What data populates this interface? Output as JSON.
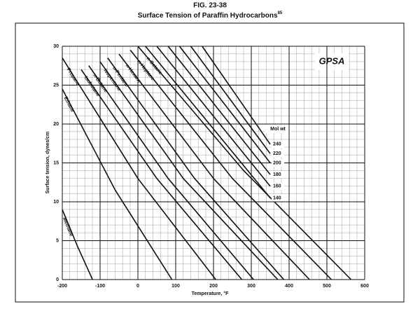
{
  "chart_data": {
    "type": "line",
    "figure_label": "FIG. 23-38",
    "title": "Surface Tension of Paraffin Hydrocarbons",
    "title_ref": "85",
    "x_label": "Temperature, °F",
    "y_label": "Surface tension, dynes/cm",
    "logo": "GPSA",
    "legend_title": "Mol wt",
    "xlim": [
      -200,
      600
    ],
    "xticks": [
      -200,
      -100,
      0,
      100,
      200,
      300,
      400,
      500,
      600
    ],
    "ylim": [
      0,
      30
    ],
    "yticks": [
      0,
      5,
      10,
      15,
      20,
      25,
      30
    ],
    "grid": true,
    "color": "#111111",
    "series": [
      {
        "name": "Methane",
        "x": [
          -200,
          -160,
          -120
        ],
        "values": [
          9,
          4.3,
          0
        ]
      },
      {
        "name": "Ethane",
        "x": [
          -200,
          -60,
          90
        ],
        "values": [
          24.5,
          11.5,
          0
        ]
      },
      {
        "name": "Propane",
        "x": [
          -200,
          0,
          206
        ],
        "values": [
          28.5,
          13,
          0
        ]
      },
      {
        "name": "Isobutane",
        "x": [
          -150,
          50,
          275
        ],
        "values": [
          27,
          13,
          0
        ]
      },
      {
        "name": "n-Butane",
        "x": [
          -130,
          80,
          306
        ],
        "values": [
          27.5,
          13,
          0
        ]
      },
      {
        "name": "Isopentane",
        "x": [
          -100,
          120,
          370
        ],
        "values": [
          28,
          13,
          0
        ]
      },
      {
        "name": "n-Pentane",
        "x": [
          -80,
          150,
          386
        ],
        "values": [
          28.5,
          13,
          0
        ]
      },
      {
        "name": "n-Hexane",
        "x": [
          -50,
          200,
          454
        ],
        "values": [
          29,
          13,
          0
        ]
      },
      {
        "name": "n-Heptane",
        "x": [
          -20,
          250,
          512
        ],
        "values": [
          29.5,
          13,
          0
        ]
      },
      {
        "name": "n-Octane",
        "x": [
          0,
          280,
          564
        ],
        "values": [
          30,
          14,
          0
        ]
      },
      {
        "name": "140",
        "x": [
          20,
          350
        ],
        "values": [
          30,
          10.5
        ],
        "mol_wt": true
      },
      {
        "name": "160",
        "x": [
          50,
          350
        ],
        "values": [
          30,
          12
        ],
        "mol_wt": true
      },
      {
        "name": "180",
        "x": [
          80,
          350
        ],
        "values": [
          30,
          13.5
        ],
        "mol_wt": true
      },
      {
        "name": "200",
        "x": [
          110,
          350
        ],
        "values": [
          30,
          15
        ],
        "mol_wt": true
      },
      {
        "name": "220",
        "x": [
          140,
          350
        ],
        "values": [
          30,
          16.2
        ],
        "mol_wt": true
      },
      {
        "name": "240",
        "x": [
          170,
          350
        ],
        "values": [
          30,
          17.4
        ],
        "mol_wt": true
      }
    ]
  }
}
